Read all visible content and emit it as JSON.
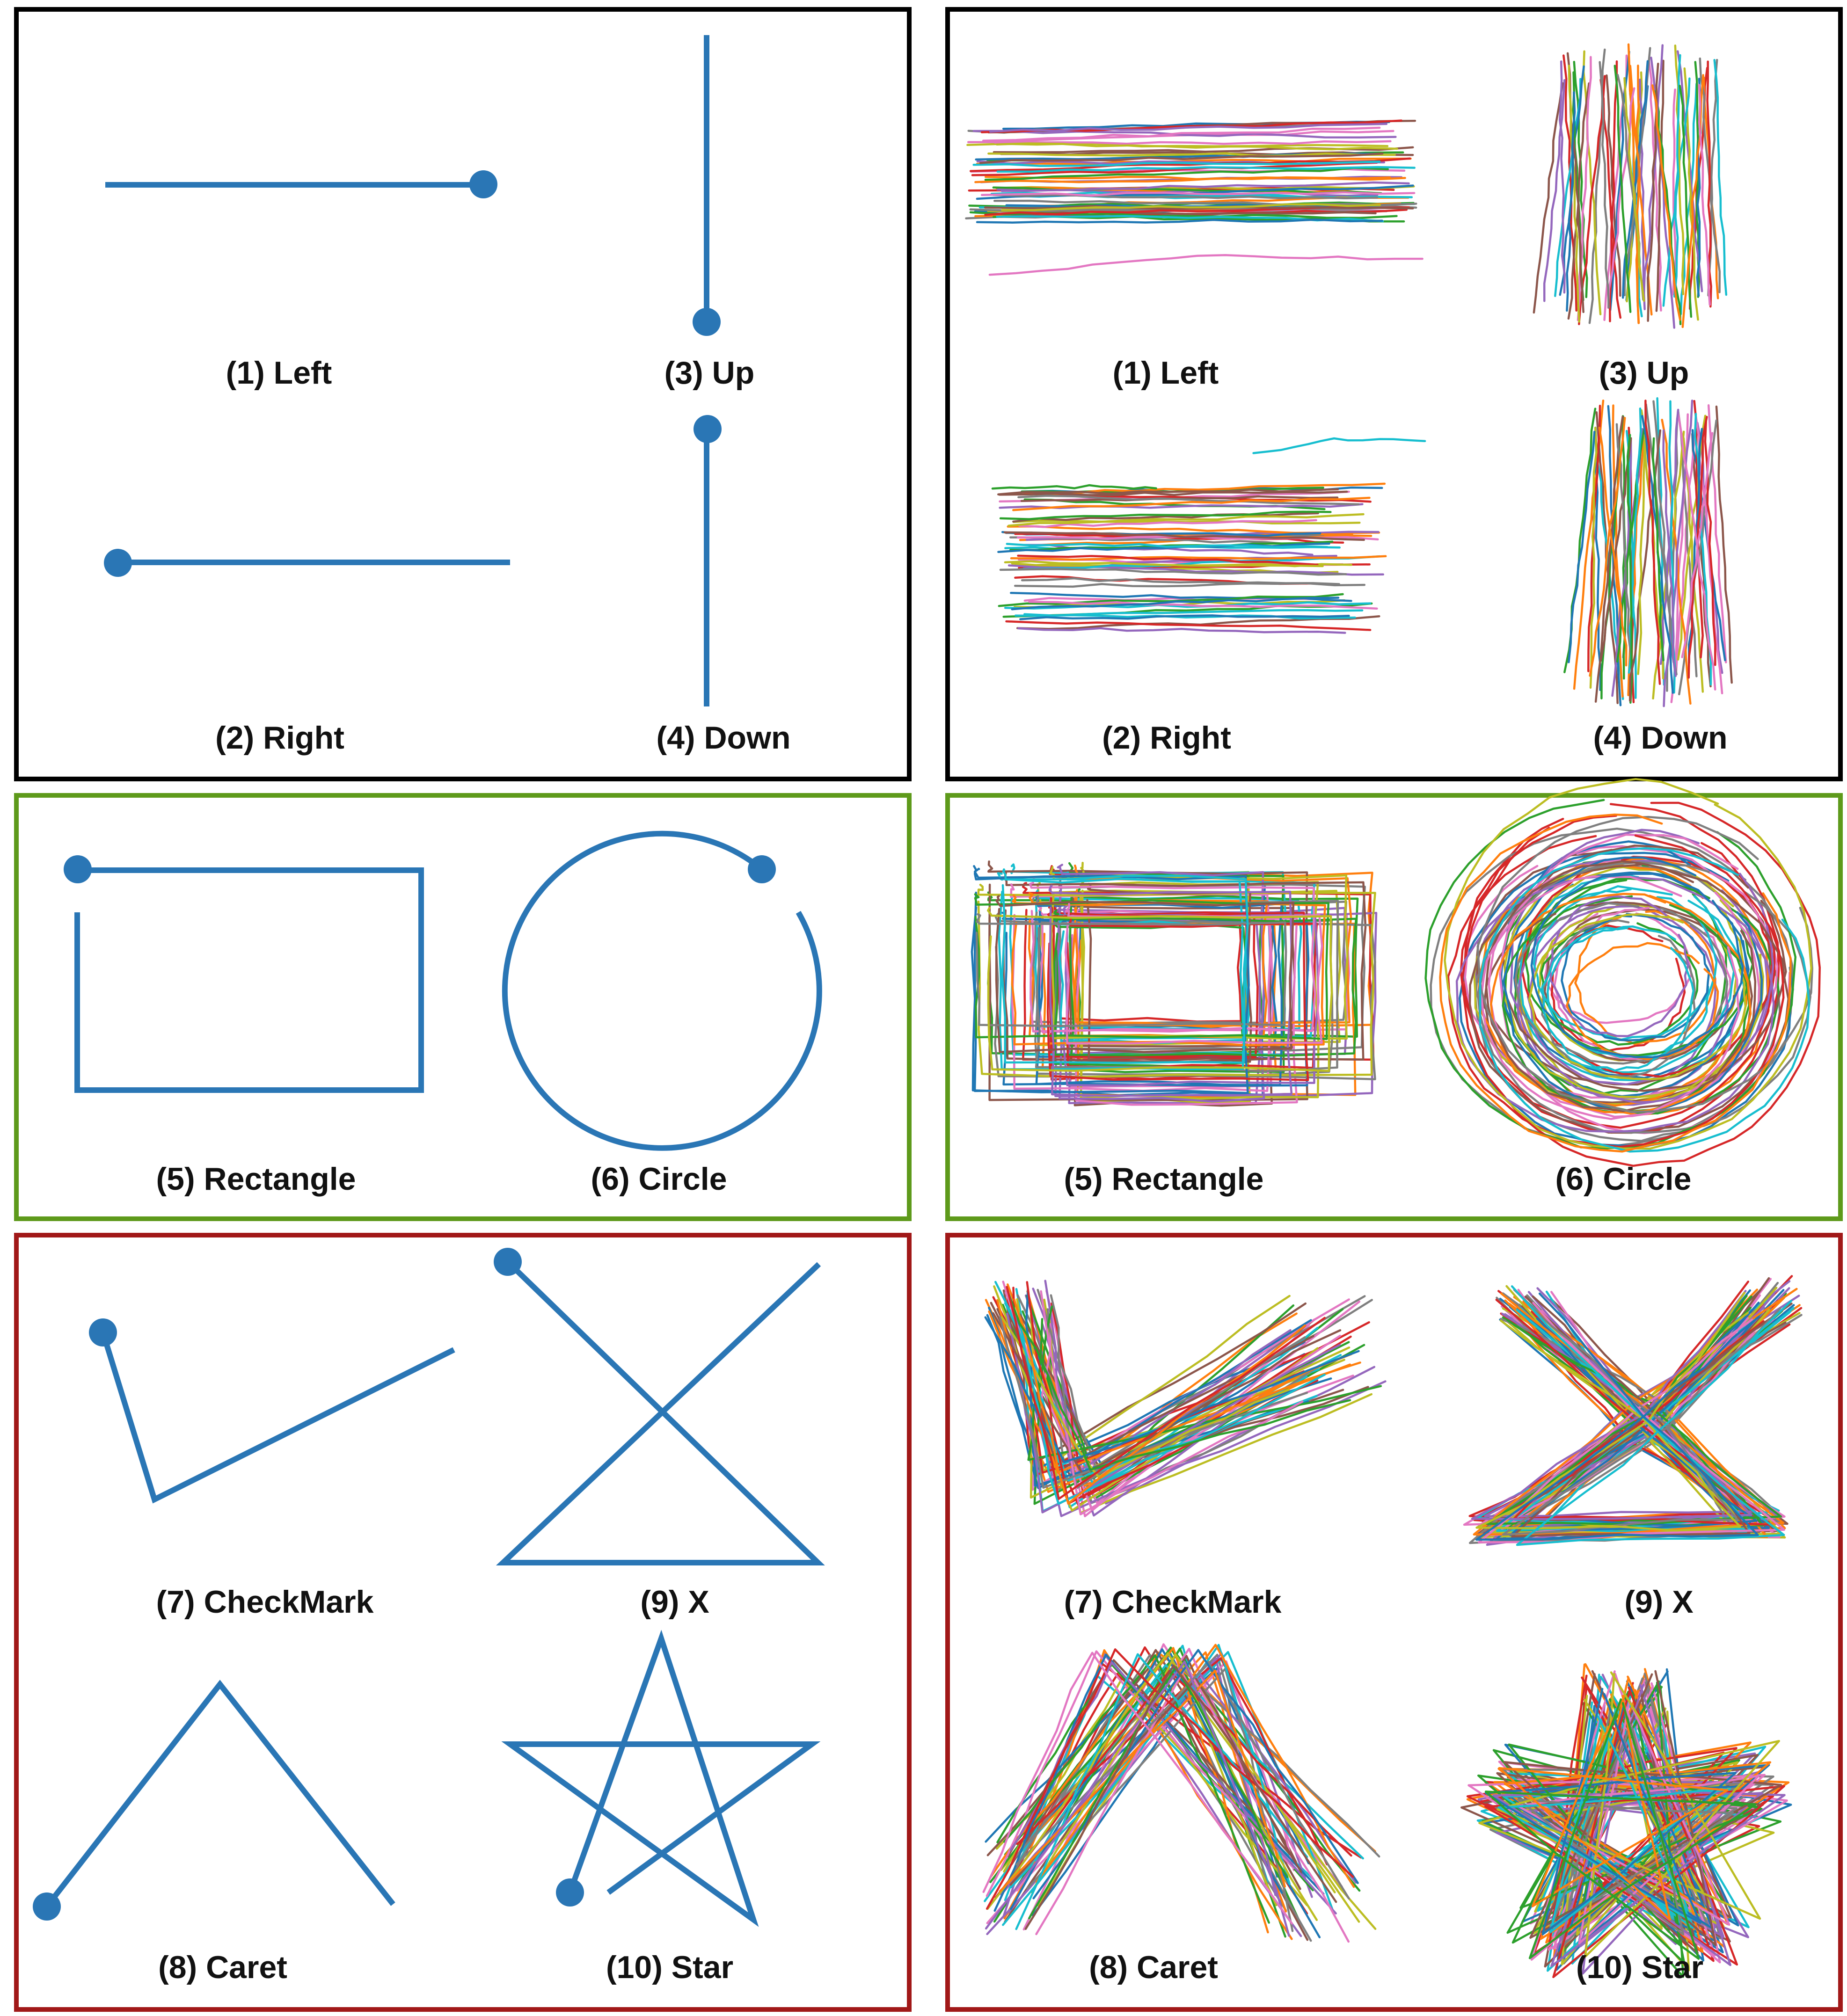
{
  "colors": {
    "template_blue": "#2a76b5",
    "border_top": "#000000",
    "border_middle": "#5e9a1b",
    "border_bottom": "#a11818",
    "trace_palette": [
      "#1f77b4",
      "#ff7f0e",
      "#2ca02c",
      "#d62728",
      "#9467bd",
      "#8c564b",
      "#e377c2",
      "#7f7f7f",
      "#bcbd22",
      "#17becf"
    ]
  },
  "panels": {
    "top": {
      "labels": {
        "left": "(1) Left",
        "up": "(3) Up",
        "right": "(2) Right",
        "down": "(4) Down"
      }
    },
    "middle": {
      "labels": {
        "rectangle": "(5) Rectangle",
        "circle": "(6) Circle"
      }
    },
    "bottom": {
      "labels": {
        "checkmark": "(7) CheckMark",
        "x": "(9) X",
        "caret": "(8) Caret",
        "star": "(10) Star"
      }
    }
  }
}
